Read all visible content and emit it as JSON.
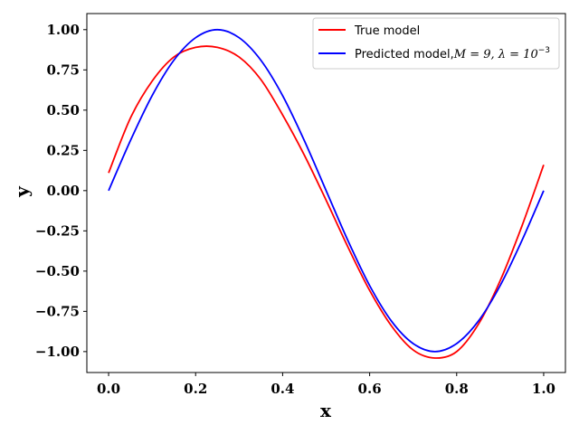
{
  "chart_data": {
    "type": "line",
    "title": "",
    "xlabel": "x",
    "ylabel": "y",
    "xlim": [
      -0.05,
      1.05
    ],
    "ylim": [
      -1.13,
      1.1
    ],
    "xticks": [
      0.0,
      0.2,
      0.4,
      0.6,
      0.8,
      1.0
    ],
    "xtick_labels": [
      "0.0",
      "0.2",
      "0.4",
      "0.6",
      "0.8",
      "1.0"
    ],
    "yticks": [
      1.0,
      0.75,
      0.5,
      0.25,
      0.0,
      -0.25,
      -0.5,
      -0.75,
      -1.0
    ],
    "ytick_labels": [
      "1.00",
      "0.75",
      "0.50",
      "0.25",
      "0.00",
      "−0.25",
      "−0.50",
      "−0.75",
      "−1.00"
    ],
    "grid": false,
    "legend_position": "top-right",
    "series": [
      {
        "name": "True model",
        "color": "#ff0000",
        "x": [
          0.0,
          0.05,
          0.1,
          0.15,
          0.2,
          0.25,
          0.3,
          0.35,
          0.4,
          0.45,
          0.5,
          0.55,
          0.6,
          0.65,
          0.7,
          0.75,
          0.8,
          0.85,
          0.9,
          0.95,
          1.0
        ],
        "y": [
          0.11,
          0.45,
          0.68,
          0.83,
          0.89,
          0.89,
          0.83,
          0.69,
          0.47,
          0.22,
          -0.06,
          -0.35,
          -0.62,
          -0.84,
          -0.99,
          -1.04,
          -1.0,
          -0.83,
          -0.56,
          -0.22,
          0.16
        ]
      },
      {
        "name": "Predicted model,",
        "name_math": "M = 9, λ = 10",
        "name_sup": "−3",
        "color": "#0000ff",
        "x": [
          0.0,
          0.05,
          0.1,
          0.15,
          0.2,
          0.25,
          0.3,
          0.35,
          0.4,
          0.45,
          0.5,
          0.55,
          0.6,
          0.65,
          0.7,
          0.75,
          0.8,
          0.85,
          0.9,
          0.95,
          1.0
        ],
        "y": [
          0.0,
          0.31,
          0.59,
          0.81,
          0.95,
          1.0,
          0.95,
          0.81,
          0.59,
          0.31,
          0.0,
          -0.31,
          -0.59,
          -0.81,
          -0.95,
          -1.0,
          -0.95,
          -0.81,
          -0.59,
          -0.31,
          0.0
        ]
      }
    ]
  }
}
